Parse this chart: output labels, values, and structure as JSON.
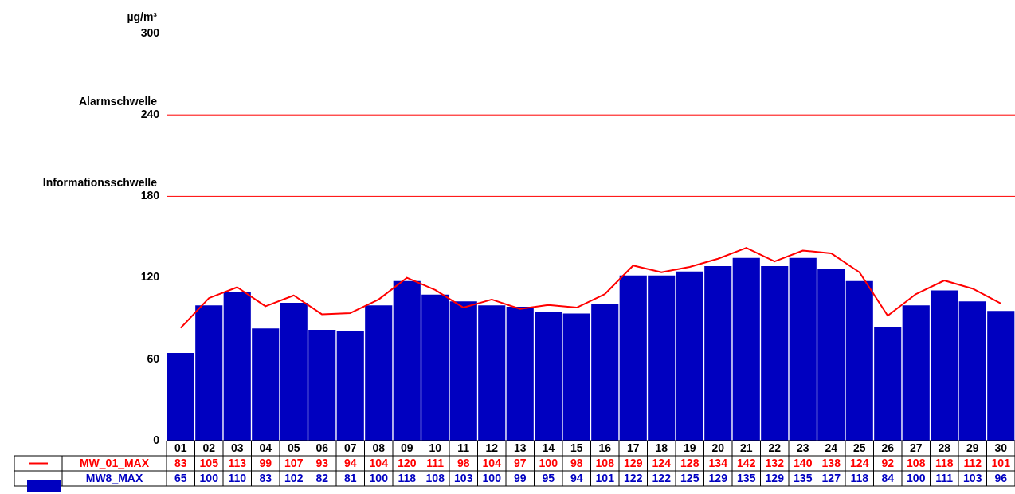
{
  "chart_data": {
    "type": "bar",
    "ylabel": "µg/m³",
    "categories": [
      "01",
      "02",
      "03",
      "04",
      "05",
      "06",
      "07",
      "08",
      "09",
      "10",
      "11",
      "12",
      "13",
      "14",
      "15",
      "16",
      "17",
      "18",
      "19",
      "20",
      "21",
      "22",
      "23",
      "24",
      "25",
      "26",
      "27",
      "28",
      "29",
      "30"
    ],
    "series": [
      {
        "type": "line",
        "name": "MW_01_MAX",
        "color": "#ff0000",
        "values": [
          83,
          105,
          113,
          99,
          107,
          93,
          94,
          104,
          120,
          111,
          98,
          104,
          97,
          100,
          98,
          108,
          129,
          124,
          128,
          134,
          142,
          132,
          140,
          138,
          124,
          92,
          108,
          118,
          112,
          101
        ]
      },
      {
        "type": "bar",
        "name": "MW8_MAX",
        "color": "#0000c0",
        "values": [
          65,
          100,
          110,
          83,
          102,
          82,
          81,
          100,
          118,
          108,
          103,
          100,
          99,
          95,
          94,
          101,
          122,
          122,
          125,
          129,
          135,
          129,
          135,
          127,
          118,
          84,
          100,
          111,
          103,
          96
        ]
      }
    ],
    "ylim": [
      0,
      300
    ],
    "yticks": [
      0,
      60,
      120,
      180,
      240,
      300
    ],
    "ref_lines": [
      {
        "axis": "y",
        "value": 180,
        "label": "Informationsschwelle",
        "color": "#ff0000"
      },
      {
        "axis": "y",
        "value": 240,
        "label": "Alarmschwelle",
        "color": "#ff0000"
      }
    ],
    "grid": false,
    "legend": "bottom",
    "marker": "none",
    "line_style": "solid",
    "data_labels": true
  }
}
